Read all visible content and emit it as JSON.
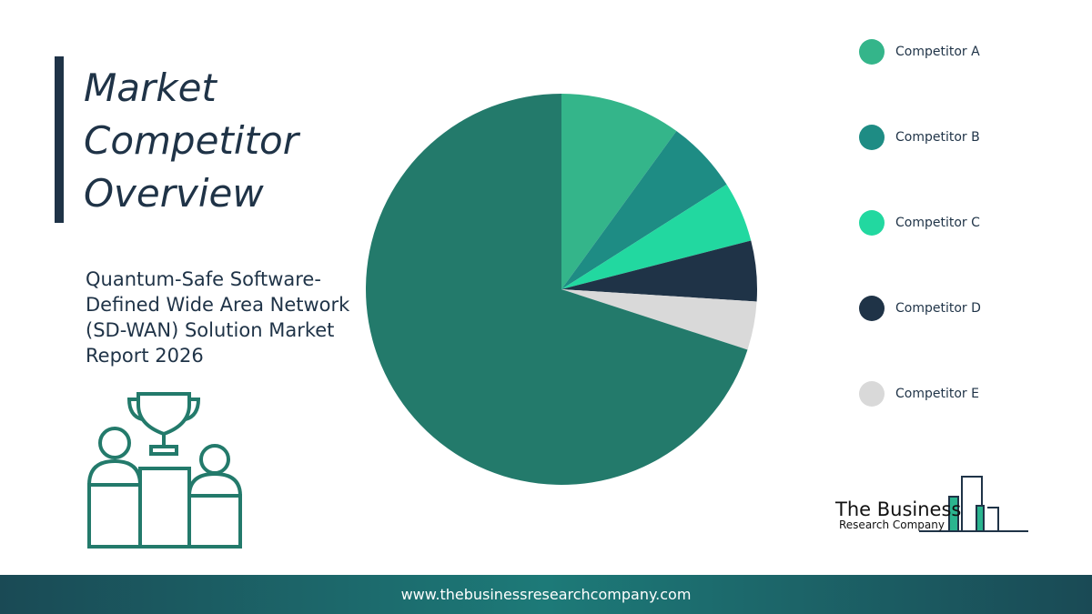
{
  "chart_data": {
    "type": "pie",
    "title": "Market Competitor Overview",
    "subtitle": "Quantum-Safe Software-Defined Wide Area Network (SD-WAN) Solution Market Report 2026",
    "categories": [
      "Competitor A",
      "Competitor B",
      "Competitor C",
      "Competitor D",
      "Competitor E",
      null
    ],
    "values": [
      10,
      6,
      5,
      5,
      4,
      70
    ],
    "colors": [
      "#34b58a",
      "#1e8c84",
      "#22d8a0",
      "#1f3347",
      "#d9d9d9",
      "#237a6b"
    ]
  },
  "logo": {
    "line1": "The Business",
    "line2": "Research Company"
  },
  "footer": {
    "url": "www.thebusinessresearchcompany.com"
  }
}
